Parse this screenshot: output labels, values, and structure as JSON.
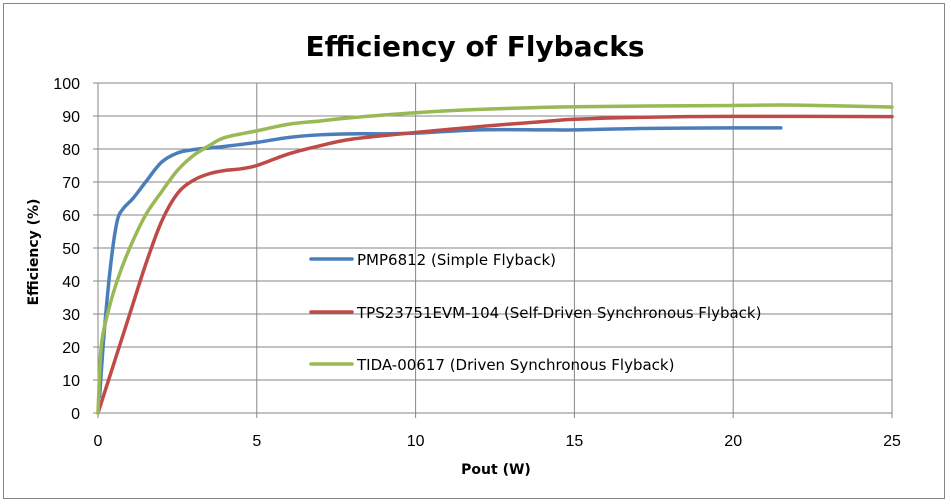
{
  "chart_data": {
    "type": "line",
    "title": "Efficiency of Flybacks",
    "xlabel": "Pout (W)",
    "ylabel": "Efficiency (%)",
    "xlim": [
      0,
      25
    ],
    "ylim": [
      0,
      100
    ],
    "xticks": [
      0,
      5,
      10,
      15,
      20,
      25
    ],
    "yticks": [
      0,
      10,
      20,
      30,
      40,
      50,
      60,
      70,
      80,
      90,
      100
    ],
    "grid": true,
    "legend_position": "center",
    "series": [
      {
        "name": "PMP6812 (Simple Flyback)",
        "color": "#4A7EBB",
        "x": [
          0.05,
          0.2,
          0.4,
          0.6,
          0.8,
          1.1,
          1.5,
          2,
          2.5,
          3,
          3.5,
          4,
          5,
          6,
          7,
          8,
          9,
          10,
          12,
          14,
          15,
          17,
          20,
          21.5
        ],
        "y": [
          5,
          25,
          45,
          58,
          62,
          65,
          70,
          76,
          78.8,
          79.8,
          80.3,
          80.8,
          82,
          83.5,
          84.3,
          84.6,
          84.6,
          84.8,
          85.8,
          85.8,
          85.8,
          86.2,
          86.4,
          86.4
        ]
      },
      {
        "name": "TPS23751EVM-104 (Self-Driven Synchronous Flyback)",
        "color": "#BE4B48",
        "x": [
          0,
          0.5,
          1,
          1.5,
          2,
          2.5,
          3,
          3.5,
          4,
          4.5,
          5,
          6,
          7,
          8,
          10,
          12,
          14,
          15,
          17,
          20,
          25
        ],
        "y": [
          0,
          15,
          30,
          45,
          58,
          66.5,
          70.5,
          72.5,
          73.5,
          74,
          75,
          78.5,
          81,
          83,
          85,
          86.8,
          88.3,
          89,
          89.6,
          89.9,
          89.8
        ]
      },
      {
        "name": "TIDA-00617 (Driven Synchronous Flyback)",
        "color": "#98B954",
        "x": [
          0,
          0.1,
          0.3,
          0.6,
          1,
          1.5,
          2,
          2.5,
          3,
          3.5,
          4,
          5,
          6,
          7,
          8,
          10,
          12,
          15,
          20,
          22,
          25
        ],
        "y": [
          0,
          20,
          30,
          40,
          50,
          60,
          67,
          73.5,
          78,
          81,
          83.5,
          85.5,
          87.5,
          88.5,
          89.5,
          91,
          92,
          92.8,
          93.2,
          93.3,
          92.7
        ]
      }
    ]
  }
}
